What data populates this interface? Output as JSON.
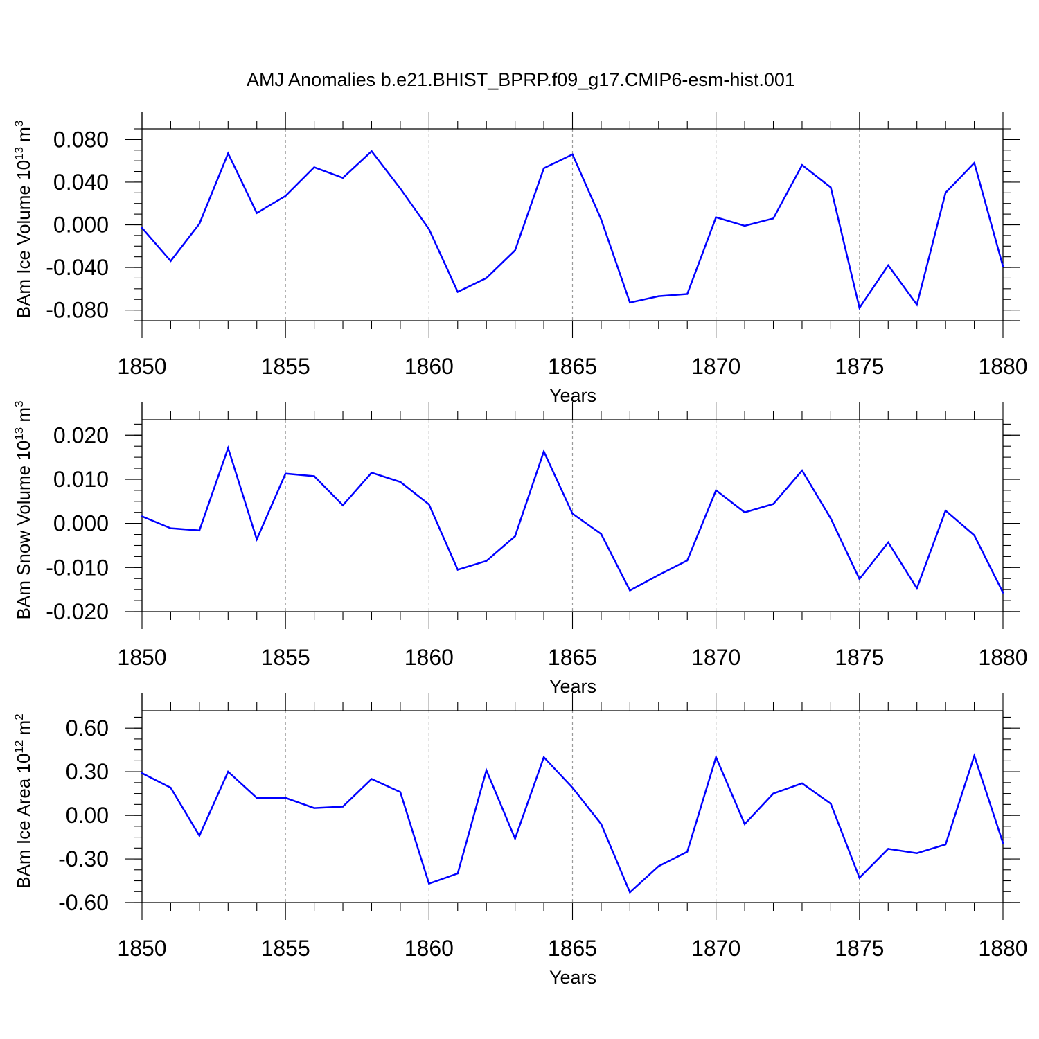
{
  "title": "AMJ Anomalies b.e21.BHIST_BPRP.f09_g17.CMIP6-esm-hist.001",
  "chart_data": [
    {
      "type": "line",
      "ylabel": "BAm Ice Volume 10",
      "ylabel_exp": "13",
      "ylabel_unit": " m",
      "ylabel_unit_exp": "3",
      "xlabel": "Years",
      "xlim": [
        1850,
        1880
      ],
      "ylim": [
        -0.09,
        0.09
      ],
      "yticks": [
        -0.08,
        -0.04,
        0.0,
        0.04,
        0.08
      ],
      "ytick_labels": [
        "-0.080",
        "-0.040",
        "0.000",
        "0.040",
        "0.080"
      ],
      "xticks": [
        1850,
        1855,
        1860,
        1865,
        1870,
        1875,
        1880
      ],
      "xtick_labels": [
        "1850",
        "1855",
        "1860",
        "1865",
        "1870",
        "1875",
        "1880"
      ],
      "grid_x": [
        1855,
        1860,
        1865,
        1870,
        1875
      ],
      "line_color": "#0000ff",
      "x": [
        1850,
        1851,
        1852,
        1853,
        1854,
        1855,
        1856,
        1857,
        1858,
        1859,
        1860,
        1861,
        1862,
        1863,
        1864,
        1865,
        1866,
        1867,
        1868,
        1869,
        1870,
        1871,
        1872,
        1873,
        1874,
        1875,
        1876,
        1877,
        1878,
        1879,
        1880
      ],
      "values": [
        -0.003,
        -0.034,
        0.001,
        0.067,
        0.011,
        0.027,
        0.054,
        0.044,
        0.069,
        0.034,
        -0.004,
        -0.063,
        -0.05,
        -0.024,
        0.053,
        0.066,
        0.005,
        -0.073,
        -0.067,
        -0.065,
        0.007,
        -0.001,
        0.006,
        0.056,
        0.035,
        -0.078,
        -0.038,
        -0.075,
        0.03,
        0.058,
        -0.039
      ]
    },
    {
      "type": "line",
      "ylabel": "BAm Snow Volume 10",
      "ylabel_exp": "13",
      "ylabel_unit": " m",
      "ylabel_unit_exp": "3",
      "xlabel": "Years",
      "xlim": [
        1850,
        1880
      ],
      "ylim": [
        -0.02,
        0.0235
      ],
      "yticks": [
        -0.02,
        -0.01,
        0.0,
        0.01,
        0.02
      ],
      "ytick_labels": [
        "-0.020",
        "-0.010",
        "0.000",
        "0.010",
        "0.020"
      ],
      "xticks": [
        1850,
        1855,
        1860,
        1865,
        1870,
        1875,
        1880
      ],
      "xtick_labels": [
        "1850",
        "1855",
        "1860",
        "1865",
        "1870",
        "1875",
        "1880"
      ],
      "grid_x": [
        1855,
        1860,
        1865,
        1870,
        1875
      ],
      "line_color": "#0000ff",
      "x": [
        1850,
        1851,
        1852,
        1853,
        1854,
        1855,
        1856,
        1857,
        1858,
        1859,
        1860,
        1861,
        1862,
        1863,
        1864,
        1865,
        1866,
        1867,
        1868,
        1869,
        1870,
        1871,
        1872,
        1873,
        1874,
        1875,
        1876,
        1877,
        1878,
        1879,
        1880
      ],
      "values": [
        0.0016,
        -0.0011,
        -0.0016,
        0.0171,
        -0.0036,
        0.0113,
        0.0107,
        0.0041,
        0.0115,
        0.0094,
        0.0043,
        -0.0105,
        -0.0085,
        -0.0029,
        0.0163,
        0.0022,
        -0.0024,
        -0.0152,
        -0.0117,
        -0.0084,
        0.0075,
        0.0025,
        0.0044,
        0.012,
        0.0011,
        -0.0126,
        -0.0043,
        -0.0147,
        0.0029,
        -0.0027,
        -0.0157
      ]
    },
    {
      "type": "line",
      "ylabel": "BAm Ice Area 10",
      "ylabel_exp": "12",
      "ylabel_unit": " m",
      "ylabel_unit_exp": "2",
      "xlabel": "Years",
      "xlim": [
        1850,
        1880
      ],
      "ylim": [
        -0.6,
        0.72
      ],
      "yticks": [
        -0.6,
        -0.3,
        0.0,
        0.3,
        0.6
      ],
      "ytick_labels": [
        "-0.60",
        "-0.30",
        "0.00",
        "0.30",
        "0.60"
      ],
      "xticks": [
        1850,
        1855,
        1860,
        1865,
        1870,
        1875,
        1880
      ],
      "xtick_labels": [
        "1850",
        "1855",
        "1860",
        "1865",
        "1870",
        "1875",
        "1880"
      ],
      "grid_x": [
        1855,
        1860,
        1865,
        1870,
        1875
      ],
      "line_color": "#0000ff",
      "x": [
        1850,
        1851,
        1852,
        1853,
        1854,
        1855,
        1856,
        1857,
        1858,
        1859,
        1860,
        1861,
        1862,
        1863,
        1864,
        1865,
        1866,
        1867,
        1868,
        1869,
        1870,
        1871,
        1872,
        1873,
        1874,
        1875,
        1876,
        1877,
        1878,
        1879,
        1880
      ],
      "values": [
        0.29,
        0.19,
        -0.14,
        0.3,
        0.12,
        0.12,
        0.05,
        0.06,
        0.25,
        0.16,
        -0.47,
        -0.4,
        0.31,
        -0.16,
        0.4,
        0.19,
        -0.06,
        -0.53,
        -0.35,
        -0.25,
        0.4,
        -0.06,
        0.15,
        0.22,
        0.08,
        -0.43,
        -0.23,
        -0.26,
        -0.2,
        0.41,
        -0.19
      ]
    }
  ]
}
